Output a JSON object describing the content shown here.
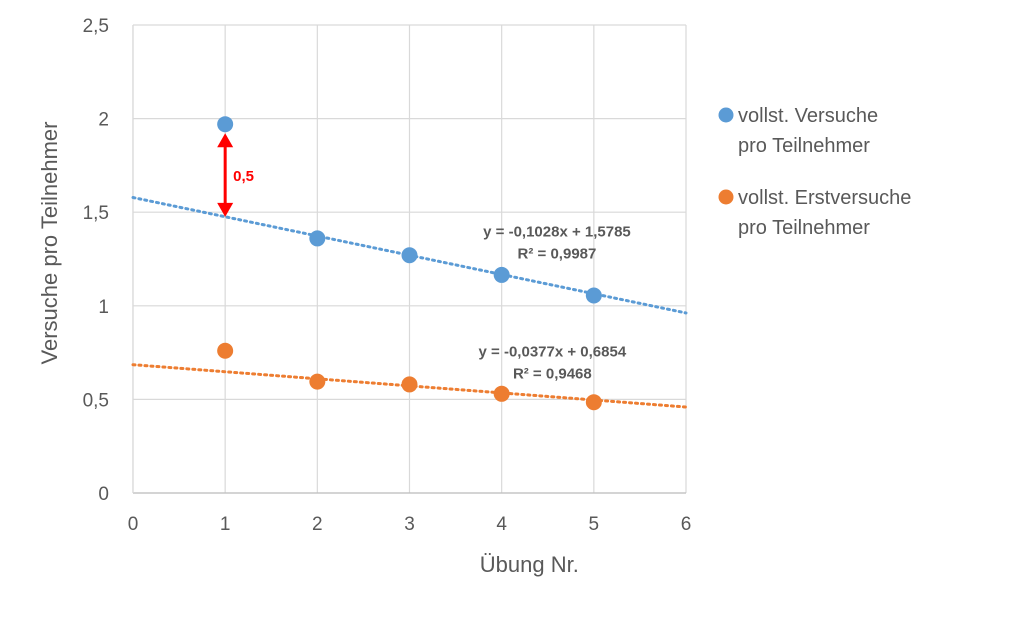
{
  "chart_data": {
    "type": "scatter",
    "xlabel": "Übung Nr.",
    "ylabel": "Versuche pro Teilnehmer",
    "xlim": [
      0,
      6
    ],
    "ylim": [
      0,
      2.5
    ],
    "xticks": [
      "0",
      "1",
      "2",
      "3",
      "4",
      "5",
      "6"
    ],
    "yticks": [
      "0",
      "0,5",
      "1",
      "1,5",
      "2",
      "2,5"
    ],
    "grid": true,
    "legend_position": "right",
    "series": [
      {
        "name_lines": [
          "vollst. Versuche",
          "pro Teilnehmer"
        ],
        "color": "#5b9bd5",
        "x": [
          1,
          2,
          3,
          4,
          5
        ],
        "y": [
          1.97,
          1.36,
          1.27,
          1.165,
          1.055
        ],
        "trendline": {
          "slope": -0.1028,
          "intercept": 1.5785,
          "equation": "y = -0,1028x + 1,5785",
          "r2": "R² = 0,9987"
        }
      },
      {
        "name_lines": [
          "vollst. Erstversuche",
          "pro Teilnehmer"
        ],
        "color": "#ed7d31",
        "x": [
          1,
          2,
          3,
          4,
          5
        ],
        "y": [
          0.76,
          0.595,
          0.58,
          0.53,
          0.485
        ],
        "trendline": {
          "slope": -0.0377,
          "intercept": 0.6854,
          "equation": "y = -0,0377x + 0,6854",
          "r2": "R² = 0,9468"
        }
      }
    ],
    "annotation": {
      "label": "0,5",
      "x": 1,
      "y_from": 1.97,
      "y_to": 1.475,
      "color": "#ff0000"
    }
  }
}
